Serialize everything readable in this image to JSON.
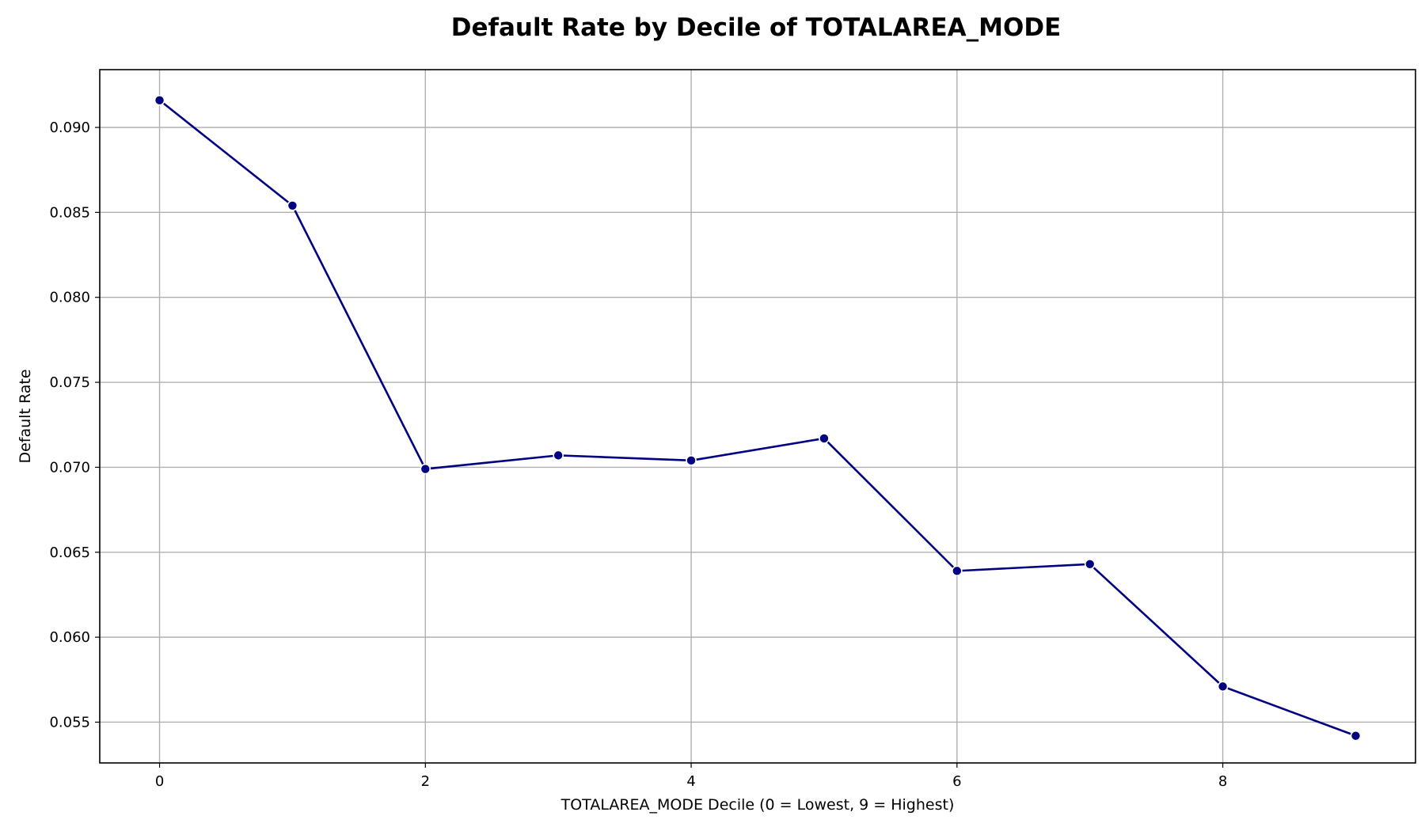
{
  "chart_data": {
    "type": "line",
    "title": "Default Rate by Decile of TOTALAREA_MODE",
    "xlabel": "TOTALAREA_MODE Decile (0 = Lowest, 9 = Highest)",
    "ylabel": "Default Rate",
    "x": [
      0,
      1,
      2,
      3,
      4,
      5,
      6,
      7,
      8,
      9
    ],
    "series": [
      {
        "values": [
          0.0916,
          0.0854,
          0.0699,
          0.0707,
          0.0704,
          0.0717,
          0.0639,
          0.0643,
          0.0571,
          0.0542
        ]
      }
    ],
    "xlim": [
      -0.45,
      9.45
    ],
    "ylim": [
      0.0526,
      0.0934
    ],
    "xticks": [
      0,
      2,
      4,
      6,
      8
    ],
    "xtick_labels": [
      "0",
      "2",
      "4",
      "6",
      "8"
    ],
    "yticks": [
      0.055,
      0.06,
      0.065,
      0.07,
      0.075,
      0.08,
      0.085,
      0.09
    ],
    "ytick_labels": [
      "0.055",
      "0.060",
      "0.065",
      "0.070",
      "0.075",
      "0.080",
      "0.085",
      "0.090"
    ],
    "grid": true,
    "line_color": "#000080",
    "marker": "circle"
  }
}
